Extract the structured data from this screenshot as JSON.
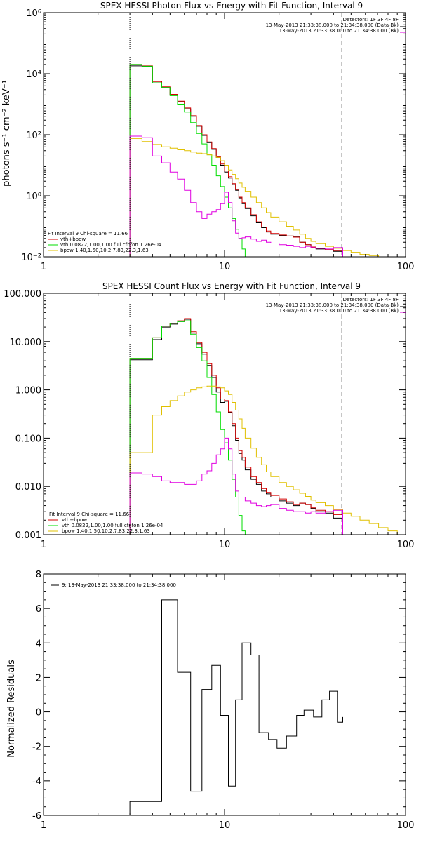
{
  "colors": {
    "data": "#000000",
    "total": "#d40000",
    "vth": "#00dd00",
    "bpow": "#e0c000",
    "bk": "#e000e0",
    "ink": "#000000"
  },
  "chart_data": [
    {
      "type": "line",
      "title": "SPEX HESSI Photon Flux vs Energy with Fit Function, Interval 9",
      "xlabel": "",
      "ylabel": "photons s⁻¹ cm⁻² keV⁻¹",
      "xscale": "log",
      "yscale": "log",
      "xlim": [
        1,
        100
      ],
      "ylim": [
        0.01,
        1000000
      ],
      "xticks": [
        1,
        10,
        100
      ],
      "xtick_labels": [
        "1",
        "10",
        "100"
      ],
      "yticks": [
        0.01,
        1,
        100,
        10000,
        1000000
      ],
      "ytick_labels": [
        "10⁻²",
        "10⁰",
        "10²",
        "10⁴",
        "10⁶"
      ],
      "vlines": [
        {
          "x": 3.0,
          "style": "dotted"
        },
        {
          "x": 44.5,
          "style": "dashed"
        }
      ],
      "legend_topright": [
        "Detectors: 1F 3F 4F 8F",
        "13-May-2013 21:33:38.000 to 21:34:38.000 (Data-Bk)",
        "13-May-2013 21:33:38.000 to 21:34:38.000 (Bk)"
      ],
      "legend_bottomleft": [
        "Fit Interval 9    Chi-square = 11.66",
        "vth+bpow",
        "vth 0.0822,1.00,1.00  full cfnfon 1.26e-04",
        "bpow 1.40,1.50,10.2,7.83,22.3,1.63"
      ],
      "edges": [
        3.0,
        3.5,
        4.0,
        4.5,
        5.0,
        5.5,
        6.0,
        6.5,
        7.0,
        7.5,
        8.0,
        8.5,
        9.0,
        9.5,
        10.0,
        10.5,
        11.0,
        11.5,
        12.0,
        12.5,
        13.0,
        14.0,
        15.0,
        16.0,
        17.0,
        18.0,
        20.0,
        22.0,
        24.0,
        26.0,
        28.0,
        30.0,
        32.0,
        36.0,
        40.0,
        45.0,
        50.0,
        56.0,
        63.0,
        71.0,
        80.0
      ],
      "series": [
        {
          "name": "Data-Bk",
          "color_key": "data",
          "values": [
            18000,
            17000,
            5000,
            3500,
            2000,
            1200,
            700,
            400,
            190,
            95,
            55,
            33,
            18,
            10,
            6,
            3.8,
            2.3,
            1.5,
            0.85,
            0.55,
            0.38,
            0.22,
            0.13,
            0.09,
            0.065,
            0.055,
            0.05,
            0.048,
            0.045,
            0.03,
            0.025,
            0.02,
            0.018,
            0.017,
            0.015
          ]
        },
        {
          "name": "vth+bpow",
          "color_key": "total",
          "values": [
            20000,
            18000,
            5500,
            3700,
            2100,
            1250,
            750,
            420,
            200,
            100,
            58,
            35,
            19,
            11,
            6.5,
            4.2,
            2.5,
            1.6,
            0.9,
            0.6,
            0.4,
            0.24,
            0.14,
            0.095,
            0.07,
            0.058,
            0.052,
            0.048,
            0.044,
            0.03,
            0.025,
            0.021,
            0.019,
            0.017,
            0.016
          ]
        },
        {
          "name": "vth",
          "color_key": "vth",
          "values": [
            20000,
            17500,
            5000,
            3500,
            1900,
            1000,
            550,
            250,
            110,
            50,
            22,
            10,
            4.5,
            2,
            0.9,
            0.4,
            0.18,
            0.08,
            0.04,
            0.018,
            0.008
          ]
        },
        {
          "name": "bpow",
          "color_key": "bpow",
          "values": [
            75,
            60,
            48,
            40,
            36,
            32,
            30,
            27,
            25,
            24,
            22,
            20,
            18,
            14,
            10,
            7,
            5,
            3.6,
            2.6,
            1.9,
            1.4,
            0.9,
            0.6,
            0.4,
            0.28,
            0.2,
            0.14,
            0.1,
            0.075,
            0.055,
            0.04,
            0.032,
            0.027,
            0.022,
            0.019,
            0.016,
            0.014,
            0.012,
            0.011,
            0.01
          ]
        },
        {
          "name": "Bk",
          "color_key": "bk",
          "values": [
            90,
            80,
            20,
            12,
            6,
            3.5,
            1.5,
            0.6,
            0.3,
            0.18,
            0.25,
            0.3,
            0.35,
            0.55,
            1.3,
            0.6,
            0.15,
            0.06,
            0.04,
            0.042,
            0.045,
            0.038,
            0.032,
            0.035,
            0.03,
            0.028,
            0.025,
            0.024,
            0.022,
            0.02,
            0.022,
            0.02,
            0.019,
            0.018,
            0.02
          ]
        }
      ]
    },
    {
      "type": "line",
      "title": "SPEX HESSI Count Flux vs Energy with Fit Function, Interval 9",
      "xlabel": "",
      "ylabel": "",
      "xscale": "log",
      "yscale": "log",
      "xlim": [
        1,
        100
      ],
      "ylim": [
        0.001,
        100
      ],
      "xticks": [
        1,
        10,
        100
      ],
      "xtick_labels": [
        "1",
        "10",
        "100"
      ],
      "yticks": [
        0.001,
        0.01,
        0.1,
        1,
        10,
        100
      ],
      "ytick_labels": [
        "0.001",
        "0.010",
        "0.100",
        "1.000",
        "10.000",
        "100.000"
      ],
      "vlines": [
        {
          "x": 3.0,
          "style": "dotted"
        },
        {
          "x": 44.5,
          "style": "dashed"
        }
      ],
      "legend_topright": [
        "Detectors: 1F 3F 4F 8F",
        "13-May-2013 21:33:38.000 to 21:34:38.000 (Data-Bk)",
        "13-May-2013 21:33:38.000 to 21:34:38.000 (Bk)"
      ],
      "legend_bottomleft": [
        "Fit Interval 9    Chi-square = 11.66",
        "vth+bpow",
        "vth 0.0822,1.00,1.00  full cfnfon 1.26e-04",
        "bpow 1.40,1.50,10.2,7.83,22.3,1.63"
      ],
      "edges": [
        3.0,
        3.5,
        4.0,
        4.5,
        5.0,
        5.5,
        6.0,
        6.5,
        7.0,
        7.5,
        8.0,
        8.5,
        9.0,
        9.5,
        10.0,
        10.5,
        11.0,
        11.5,
        12.0,
        12.5,
        13.0,
        14.0,
        15.0,
        16.0,
        17.0,
        18.0,
        20.0,
        22.0,
        24.0,
        26.0,
        28.0,
        30.0,
        32.0,
        36.0,
        40.0,
        45.0,
        50.0,
        56.0,
        63.0,
        71.0,
        80.0,
        90.0,
        100.0
      ],
      "series": [
        {
          "name": "Data-Bk",
          "color_key": "data",
          "values": [
            4.2,
            4.2,
            11,
            20,
            23,
            26,
            29,
            15,
            9,
            5.5,
            3.2,
            1.8,
            0.9,
            0.55,
            0.58,
            0.34,
            0.18,
            0.09,
            0.048,
            0.035,
            0.022,
            0.014,
            0.011,
            0.008,
            0.007,
            0.006,
            0.005,
            0.0045,
            0.004,
            0.0045,
            0.0042,
            0.0035,
            0.003,
            0.0028,
            0.0022
          ]
        },
        {
          "name": "vth+bpow",
          "color_key": "total",
          "values": [
            4.5,
            4.5,
            12,
            21,
            24,
            27,
            30,
            16,
            9.5,
            6,
            3.5,
            2,
            1.1,
            0.65,
            0.6,
            0.35,
            0.2,
            0.1,
            0.055,
            0.04,
            0.025,
            0.016,
            0.012,
            0.009,
            0.0075,
            0.0065,
            0.0055,
            0.0048,
            0.0042,
            0.0045,
            0.0042,
            0.0036,
            0.0032,
            0.003,
            0.0026
          ]
        },
        {
          "name": "vth",
          "color_key": "vth",
          "values": [
            4.5,
            4.5,
            12,
            21,
            24,
            26,
            27,
            14,
            7.5,
            4,
            1.8,
            0.8,
            0.35,
            0.15,
            0.08,
            0.035,
            0.014,
            0.006,
            0.0025,
            0.0012,
            0.0006
          ]
        },
        {
          "name": "bpow",
          "color_key": "bpow",
          "values": [
            0.05,
            0.05,
            0.3,
            0.45,
            0.6,
            0.75,
            0.9,
            1.0,
            1.1,
            1.15,
            1.2,
            1.2,
            1.15,
            1.1,
            0.95,
            0.8,
            0.55,
            0.38,
            0.25,
            0.16,
            0.1,
            0.062,
            0.04,
            0.028,
            0.02,
            0.016,
            0.012,
            0.01,
            0.0085,
            0.0072,
            0.0062,
            0.0052,
            0.0046,
            0.004,
            0.0033,
            0.0028,
            0.0024,
            0.002,
            0.0017,
            0.0014,
            0.0012,
            0.001
          ]
        },
        {
          "name": "Bk",
          "color_key": "bk",
          "values": [
            0.019,
            0.018,
            0.016,
            0.013,
            0.012,
            0.012,
            0.011,
            0.011,
            0.013,
            0.018,
            0.021,
            0.03,
            0.045,
            0.06,
            0.1,
            0.06,
            0.018,
            0.008,
            0.006,
            0.006,
            0.005,
            0.0045,
            0.004,
            0.0038,
            0.004,
            0.0042,
            0.0035,
            0.0032,
            0.003,
            0.003,
            0.0028,
            0.003,
            0.0028,
            0.003,
            0.0032
          ]
        }
      ]
    },
    {
      "type": "line",
      "title": "",
      "xlabel": "",
      "ylabel": "Normalized Residuals",
      "xscale": "log",
      "yscale": "linear",
      "xlim": [
        1,
        100
      ],
      "ylim": [
        -6,
        8
      ],
      "xticks": [
        1,
        10,
        100
      ],
      "xtick_labels": [
        "1",
        "10",
        "100"
      ],
      "yticks": [
        -6,
        -4,
        -2,
        0,
        2,
        4,
        6,
        8
      ],
      "ytick_labels": [
        "-6",
        "-4",
        "-2",
        "0",
        "2",
        "4",
        "6",
        "8"
      ],
      "legend_topleft": [
        "9: 13-May-2013 21:33:38.000 to 21:34:38.000"
      ],
      "edges": [
        3.0,
        4.5,
        5.5,
        6.5,
        7.5,
        8.5,
        9.5,
        10.5,
        11.5,
        12.5,
        14.0,
        15.5,
        17.5,
        19.5,
        22.0,
        25.0,
        27.5,
        31.0,
        34.5,
        38.0,
        42.0,
        45.0
      ],
      "series": [
        {
          "name": "Residuals",
          "color_key": "data",
          "values": [
            -5.2,
            6.5,
            2.3,
            -4.6,
            1.3,
            2.7,
            -0.2,
            -4.3,
            0.7,
            4.0,
            3.3,
            -1.2,
            -1.6,
            -2.1,
            -1.4,
            -0.2,
            0.1,
            -0.3,
            0.7,
            1.2,
            -0.6,
            -0.3
          ]
        }
      ]
    }
  ]
}
